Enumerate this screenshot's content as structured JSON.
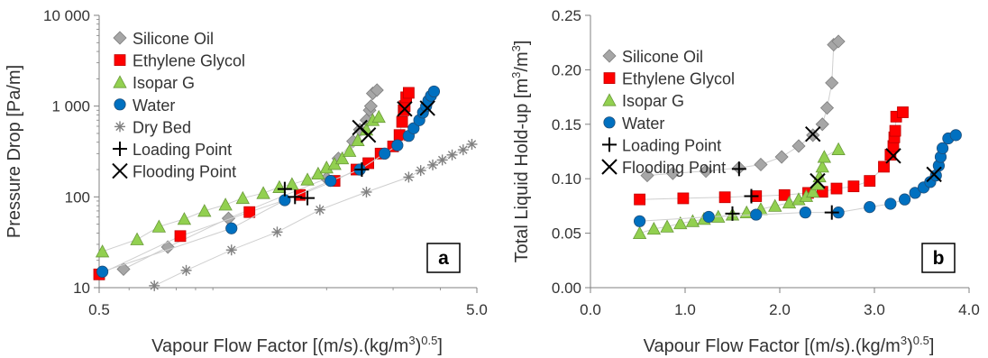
{
  "chart_data": [
    {
      "panel_label": "a",
      "type": "scatter",
      "xlabel_pre": "Vapour Flow Factor [(m/s).(kg/m",
      "xlabel_sup": "3",
      "xlabel_post": ")",
      "xlabel_sup2": "0.5",
      "xlabel_end": "]",
      "ylabel": "Pressure Drop [Pa/m]",
      "x_scale": "log",
      "y_scale": "log",
      "xlim": [
        0.5,
        5.0
      ],
      "ylim": [
        10,
        10000
      ],
      "x_ticks": [
        0.5,
        5.0
      ],
      "x_tick_labels": [
        "0.5",
        "5.0"
      ],
      "y_ticks": [
        10,
        100,
        1000,
        10000
      ],
      "y_tick_labels": [
        "10",
        "100",
        "1 000",
        "10 000"
      ],
      "grid": false,
      "legend_position": "top-left",
      "series": [
        {
          "name": "Silicone Oil",
          "marker": "diamond",
          "color": "#a6a6a6",
          "x": [
            0.58,
            0.76,
            1.1,
            2.0,
            2.15,
            2.35,
            2.45,
            2.55,
            2.6,
            2.62,
            2.65,
            2.72
          ],
          "y": [
            16,
            28,
            58,
            160,
            265,
            410,
            550,
            700,
            900,
            1000,
            1380,
            1500
          ]
        },
        {
          "name": "Ethylene Glycol",
          "marker": "square",
          "color": "#ff0000",
          "x": [
            0.5,
            0.82,
            1.25,
            1.7,
            2.1,
            2.4,
            2.58,
            2.78,
            3.0,
            3.12,
            3.17,
            3.2,
            3.22,
            3.25,
            3.3
          ],
          "y": [
            14,
            37,
            68,
            105,
            150,
            200,
            235,
            300,
            360,
            480,
            670,
            900,
            1000,
            1250,
            1400
          ]
        },
        {
          "name": "Isopar G",
          "marker": "triangle",
          "color": "#92d050",
          "x": [
            0.51,
            0.63,
            0.72,
            0.84,
            0.95,
            1.08,
            1.2,
            1.36,
            1.5,
            1.62,
            1.78,
            1.9,
            2.0,
            2.1,
            2.2,
            2.3,
            2.42,
            2.55,
            2.65,
            2.75
          ],
          "y": [
            25,
            34,
            47,
            57,
            70,
            82,
            97,
            110,
            128,
            138,
            155,
            180,
            210,
            230,
            265,
            320,
            420,
            550,
            700,
            760
          ]
        },
        {
          "name": "Water",
          "marker": "circle",
          "color": "#0070c0",
          "x": [
            0.51,
            1.12,
            1.55,
            2.05,
            2.45,
            2.85,
            3.08,
            3.3,
            3.4,
            3.52,
            3.6,
            3.67,
            3.72,
            3.78,
            3.85
          ],
          "y": [
            15,
            45,
            92,
            150,
            200,
            300,
            370,
            470,
            570,
            700,
            850,
            1000,
            1150,
            1300,
            1450
          ]
        },
        {
          "name": "Dry Bed",
          "marker": "asterisk",
          "color": "#808080",
          "x": [
            0.7,
            0.85,
            1.12,
            1.48,
            1.92,
            2.55,
            3.3,
            3.55,
            3.82,
            4.05,
            4.3,
            4.6,
            4.85
          ],
          "y": [
            10.5,
            15.5,
            26,
            41,
            72,
            113,
            165,
            195,
            225,
            255,
            290,
            330,
            380
          ]
        },
        {
          "name": "Loading Point",
          "marker": "plus",
          "color": "#000000",
          "x": [
            1.55,
            1.65,
            1.78,
            2.48
          ],
          "y": [
            122,
            100,
            97,
            200
          ]
        },
        {
          "name": "Flooding Point",
          "marker": "cross",
          "color": "#000000",
          "x": [
            2.45,
            2.58,
            3.22,
            3.7
          ],
          "y": [
            580,
            480,
            930,
            950
          ]
        }
      ]
    },
    {
      "panel_label": "b",
      "type": "scatter",
      "xlabel_pre": "Vapour Flow Factor [(m/s).(kg/m",
      "xlabel_sup": "3",
      "xlabel_post": ")",
      "xlabel_sup2": "0.5",
      "xlabel_end": "]",
      "ylabel_pre": "Total Liquid Hold-up [m",
      "ylabel_sup": "3",
      "ylabel_mid": "/m",
      "ylabel_sup2": "3",
      "ylabel_end": "]",
      "x_scale": "linear",
      "y_scale": "linear",
      "xlim": [
        0.0,
        4.0
      ],
      "ylim": [
        0.0,
        0.25
      ],
      "x_ticks": [
        0.0,
        1.0,
        2.0,
        3.0,
        4.0
      ],
      "x_tick_labels": [
        "0.0",
        "1.0",
        "2.0",
        "3.0",
        "4.0"
      ],
      "y_ticks": [
        0.0,
        0.05,
        0.1,
        0.15,
        0.2,
        0.25
      ],
      "y_tick_labels": [
        "0.00",
        "0.05",
        "0.10",
        "0.15",
        "0.20",
        "0.25"
      ],
      "grid": false,
      "legend_position": "top-left",
      "series": [
        {
          "name": "Silicone Oil",
          "marker": "diamond",
          "color": "#a6a6a6",
          "x": [
            0.6,
            0.87,
            1.22,
            1.57,
            1.8,
            2.02,
            2.2,
            2.35,
            2.45,
            2.5,
            2.55,
            2.57,
            2.62
          ],
          "y": [
            0.103,
            0.105,
            0.107,
            0.11,
            0.113,
            0.12,
            0.13,
            0.14,
            0.15,
            0.165,
            0.188,
            0.223,
            0.226
          ]
        },
        {
          "name": "Ethylene Glycol",
          "marker": "square",
          "color": "#ff0000",
          "x": [
            0.52,
            0.98,
            1.42,
            1.75,
            2.05,
            2.3,
            2.45,
            2.6,
            2.78,
            2.95,
            3.1,
            3.17,
            3.2,
            3.21,
            3.22,
            3.23,
            3.3
          ],
          "y": [
            0.081,
            0.082,
            0.083,
            0.084,
            0.085,
            0.087,
            0.088,
            0.091,
            0.093,
            0.098,
            0.111,
            0.122,
            0.13,
            0.138,
            0.144,
            0.157,
            0.161
          ]
        },
        {
          "name": "Isopar G",
          "marker": "triangle",
          "color": "#92d050",
          "x": [
            0.52,
            0.67,
            0.81,
            0.95,
            1.08,
            1.2,
            1.35,
            1.5,
            1.65,
            1.8,
            1.95,
            2.1,
            2.2,
            2.28,
            2.35,
            2.4,
            2.42,
            2.45,
            2.47,
            2.62
          ],
          "y": [
            0.05,
            0.054,
            0.056,
            0.059,
            0.061,
            0.063,
            0.065,
            0.067,
            0.069,
            0.072,
            0.075,
            0.078,
            0.081,
            0.084,
            0.088,
            0.095,
            0.102,
            0.111,
            0.12,
            0.127
          ]
        },
        {
          "name": "Water",
          "marker": "circle",
          "color": "#0070c0",
          "x": [
            0.52,
            1.25,
            1.75,
            2.27,
            2.62,
            2.95,
            3.17,
            3.32,
            3.43,
            3.52,
            3.59,
            3.65,
            3.68,
            3.7,
            3.72,
            3.78,
            3.86
          ],
          "y": [
            0.061,
            0.065,
            0.067,
            0.069,
            0.069,
            0.074,
            0.077,
            0.081,
            0.087,
            0.092,
            0.097,
            0.103,
            0.112,
            0.12,
            0.128,
            0.137,
            0.14
          ]
        },
        {
          "name": "Loading Point",
          "marker": "plus",
          "color": "#000000",
          "x": [
            1.5,
            1.57,
            1.7,
            2.55
          ],
          "y": [
            0.068,
            0.109,
            0.084,
            0.069
          ]
        },
        {
          "name": "Flooding Point",
          "marker": "cross",
          "color": "#000000",
          "x": [
            2.35,
            2.4,
            3.2,
            3.63
          ],
          "y": [
            0.141,
            0.098,
            0.121,
            0.104
          ]
        }
      ]
    }
  ]
}
